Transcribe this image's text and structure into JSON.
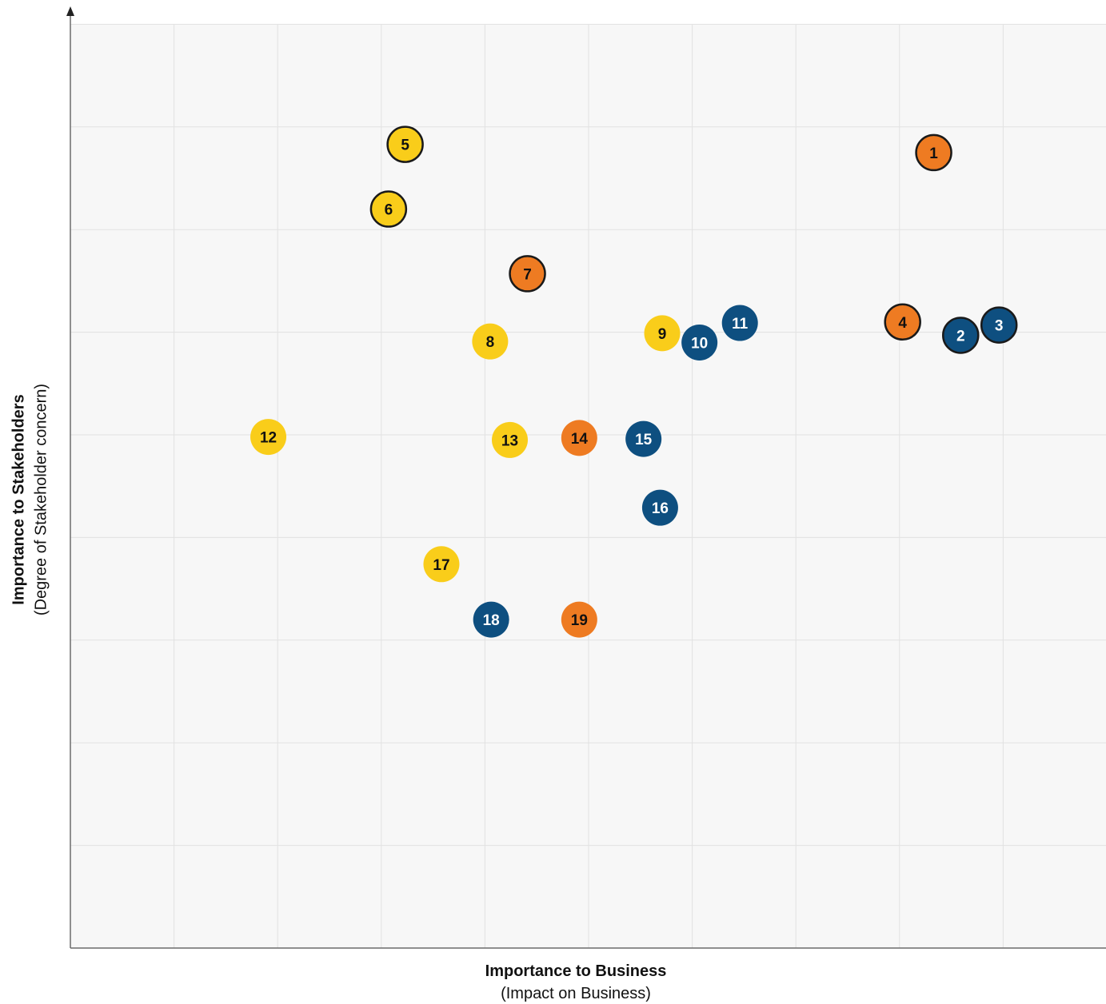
{
  "chart_data": {
    "type": "scatter",
    "xlabel": "Importance to Business",
    "xlabel_sub": "(Impact on Business)",
    "ylabel": "Importance to Stakeholders",
    "ylabel_sub": "(Degree of Stakeholder concern)",
    "xlim": [
      0,
      10
    ],
    "ylim": [
      0,
      9
    ],
    "grid": true,
    "colors": {
      "yellow": "#f9cd1a",
      "orange": "#ee7b22",
      "blue": "#0e4f80",
      "grid": "#e2e2e2",
      "plot_bg": "#f7f7f7",
      "axis": "#6b6b6b"
    },
    "points": [
      {
        "label": "1",
        "x": 8.33,
        "y": 7.75,
        "color": "orange",
        "outlined": true
      },
      {
        "label": "2",
        "x": 8.59,
        "y": 5.97,
        "color": "blue",
        "outlined": true
      },
      {
        "label": "3",
        "x": 8.96,
        "y": 6.07,
        "color": "blue",
        "outlined": true
      },
      {
        "label": "4",
        "x": 8.03,
        "y": 6.1,
        "color": "orange",
        "outlined": true
      },
      {
        "label": "5",
        "x": 3.23,
        "y": 7.83,
        "color": "yellow",
        "outlined": true
      },
      {
        "label": "6",
        "x": 3.07,
        "y": 7.2,
        "color": "yellow",
        "outlined": true
      },
      {
        "label": "7",
        "x": 4.41,
        "y": 6.57,
        "color": "orange",
        "outlined": true
      },
      {
        "label": "8",
        "x": 4.05,
        "y": 5.91,
        "color": "yellow",
        "outlined": false
      },
      {
        "label": "9",
        "x": 5.71,
        "y": 5.99,
        "color": "yellow",
        "outlined": false
      },
      {
        "label": "10",
        "x": 6.07,
        "y": 5.9,
        "color": "blue",
        "outlined": false
      },
      {
        "label": "11",
        "x": 6.46,
        "y": 6.09,
        "color": "blue",
        "outlined": false
      },
      {
        "label": "12",
        "x": 1.91,
        "y": 4.98,
        "color": "yellow",
        "outlined": false
      },
      {
        "label": "13",
        "x": 4.24,
        "y": 4.95,
        "color": "yellow",
        "outlined": false
      },
      {
        "label": "14",
        "x": 4.91,
        "y": 4.97,
        "color": "orange",
        "outlined": false
      },
      {
        "label": "15",
        "x": 5.53,
        "y": 4.96,
        "color": "blue",
        "outlined": false
      },
      {
        "label": "16",
        "x": 5.69,
        "y": 4.29,
        "color": "blue",
        "outlined": false
      },
      {
        "label": "17",
        "x": 3.58,
        "y": 3.74,
        "color": "yellow",
        "outlined": false
      },
      {
        "label": "18",
        "x": 4.06,
        "y": 3.2,
        "color": "blue",
        "outlined": false
      },
      {
        "label": "19",
        "x": 4.91,
        "y": 3.2,
        "color": "orange",
        "outlined": false
      }
    ]
  }
}
